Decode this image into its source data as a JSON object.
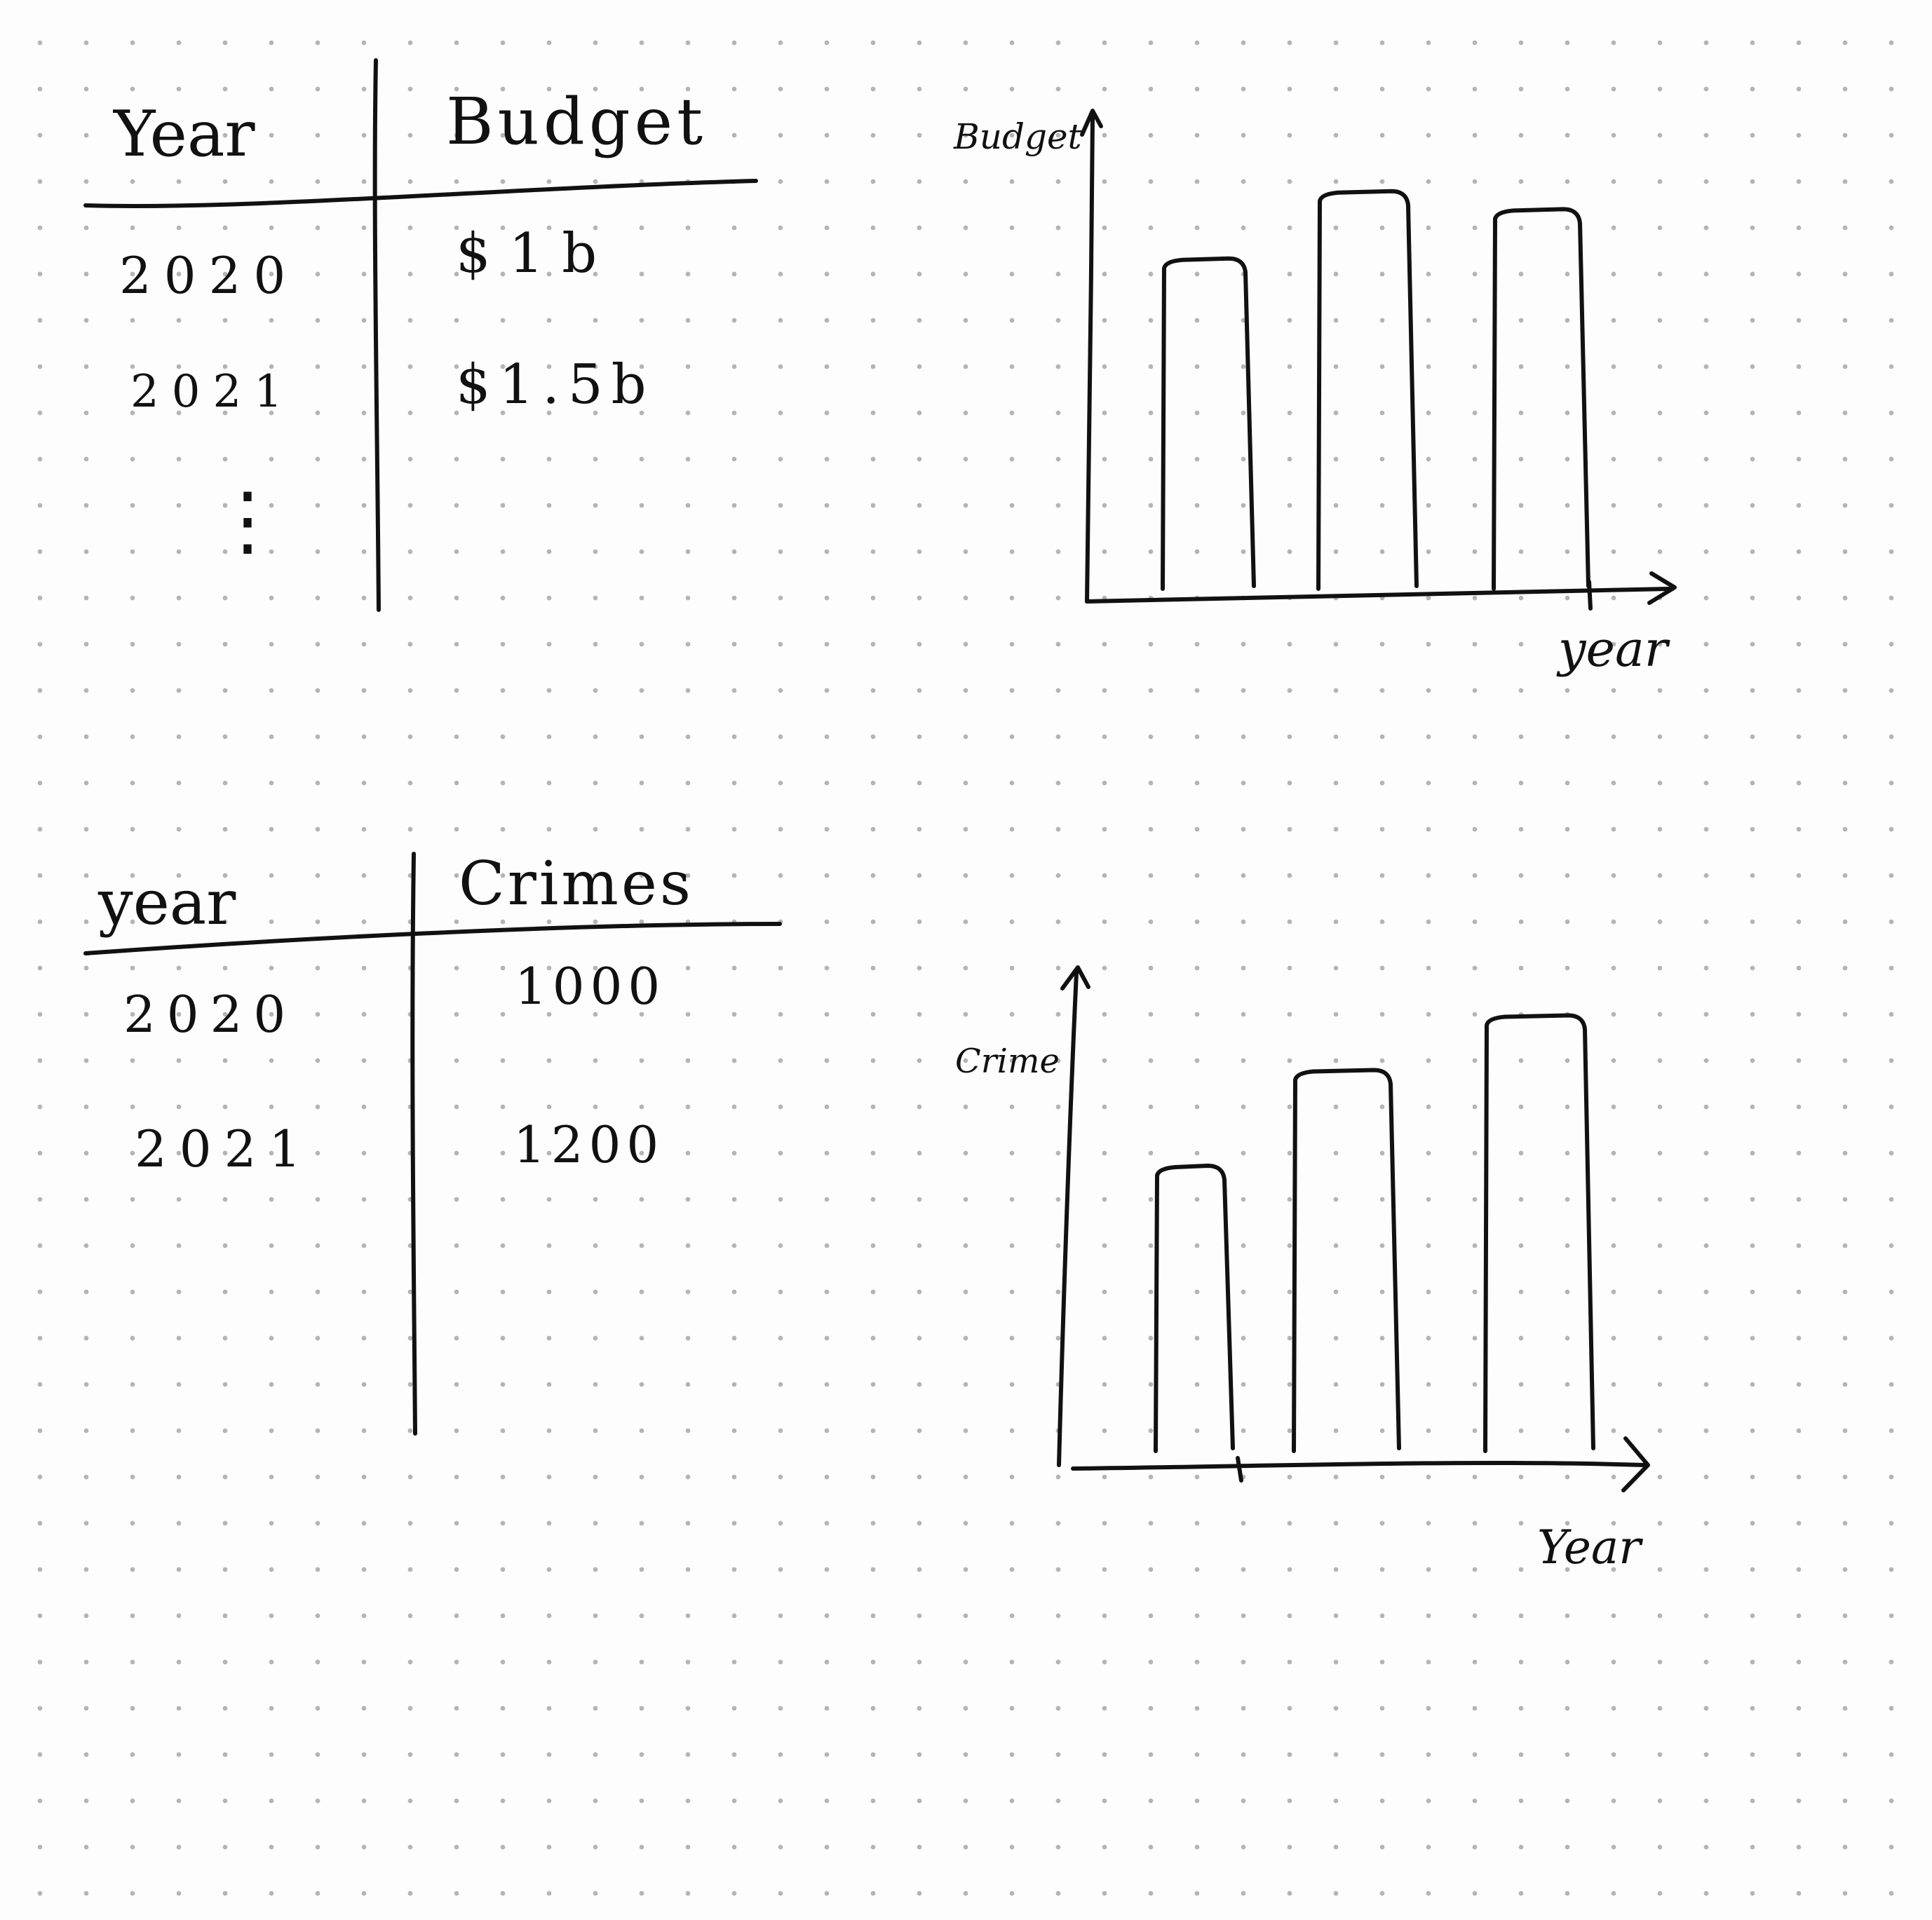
{
  "budget_table": {
    "headers": [
      "Year",
      "Budget"
    ],
    "rows": [
      {
        "year": "2020",
        "value": "$1b"
      },
      {
        "year": "2021",
        "value": "$1.5b"
      }
    ],
    "ellipsis": "⋮"
  },
  "crimes_table": {
    "headers": [
      "year",
      "Crimes"
    ],
    "rows": [
      {
        "year": "2020",
        "value": "1000"
      },
      {
        "year": "2021",
        "value": "1200"
      }
    ]
  },
  "chart_data": [
    {
      "type": "bar",
      "xlabel": "year",
      "ylabel": "Budget",
      "categories": [
        "",
        "",
        ""
      ],
      "values": [
        0.73,
        0.88,
        0.84
      ],
      "ylim": [
        0,
        1
      ]
    },
    {
      "type": "bar",
      "xlabel": "Year",
      "ylabel": "Crime",
      "categories": [
        "",
        "",
        ""
      ],
      "values": [
        0.62,
        0.83,
        0.95
      ],
      "ylim": [
        0,
        1
      ]
    }
  ]
}
